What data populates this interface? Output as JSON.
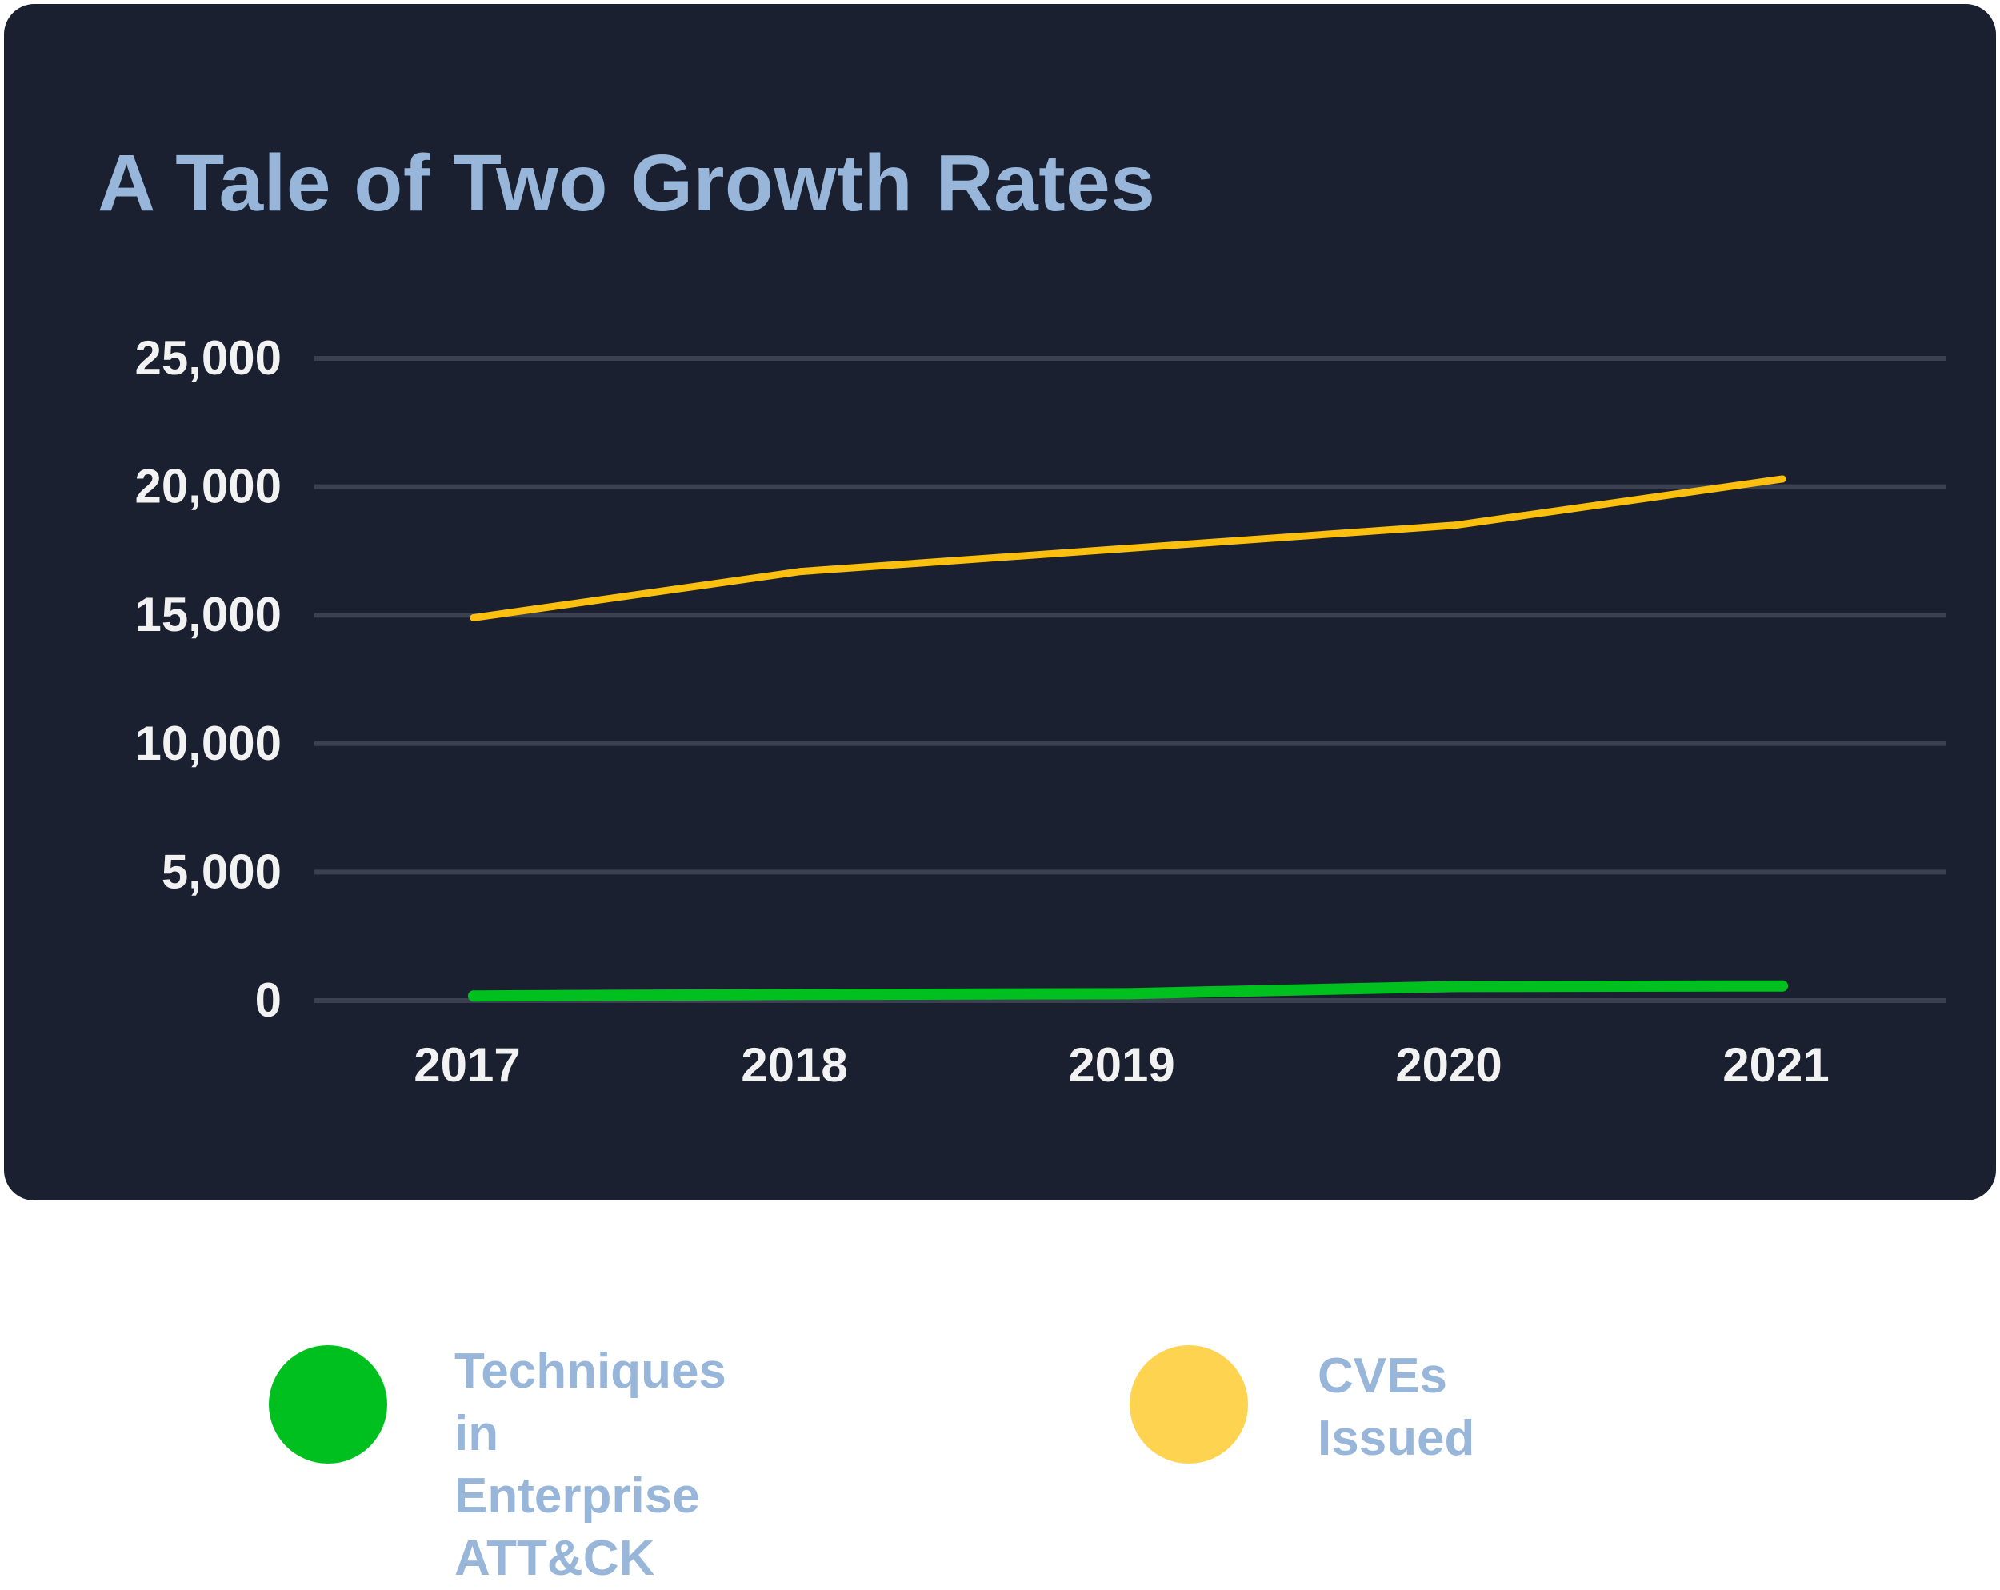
{
  "chart_data": {
    "type": "line",
    "title": "A Tale of Two Growth Rates",
    "xlabel": "",
    "ylabel": "",
    "categories": [
      "2017",
      "2018",
      "2019",
      "2020",
      "2021"
    ],
    "ylim": [
      0,
      25000
    ],
    "yticks": [
      0,
      5000,
      10000,
      15000,
      20000,
      25000
    ],
    "ytick_labels": [
      "0",
      "5,000",
      "10,000",
      "15,000",
      "20,000",
      "25,000"
    ],
    "grid": true,
    "legend_position": "bottom",
    "series": [
      {
        "name": "Techniques in Enterprise ATT&CK",
        "label_lines": "Techniques\nin Enterprise\nATT&CK",
        "color": "#00c020",
        "values": [
          180,
          240,
          270,
          550,
          570
        ]
      },
      {
        "name": "CVEs Issued",
        "label_lines": "CVEs\nIssued",
        "color": "#fbbf0f",
        "legend_color": "#fdd34f",
        "values": [
          14900,
          16700,
          17600,
          18500,
          20300
        ]
      }
    ]
  },
  "colors": {
    "background": "#1a2030",
    "gridline": "#3b4150",
    "title": "#97b6da",
    "tick_text": "#f2f2f2"
  }
}
